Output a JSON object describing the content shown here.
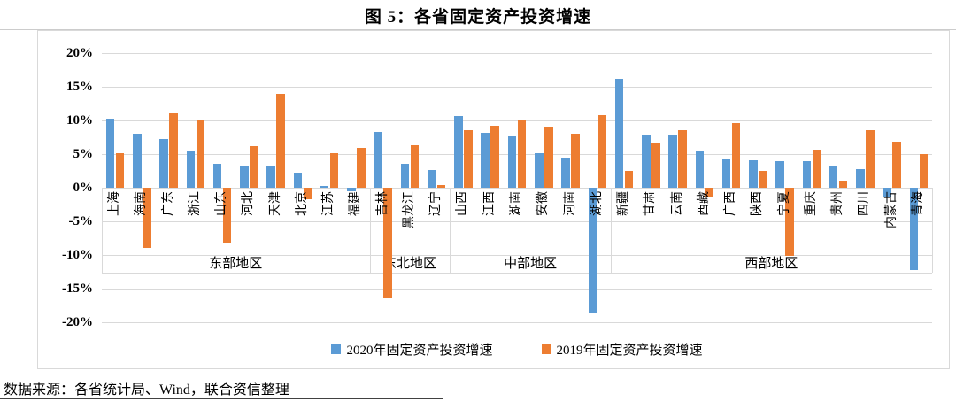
{
  "document": {
    "title": "图 5：各省固定资产投资增速",
    "source_note": "数据来源：各省统计局、Wind，联合资信整理"
  },
  "chart_data": {
    "type": "bar",
    "title": "图 5：各省固定资产投资增速",
    "categories": [
      "上海",
      "海南",
      "广东",
      "浙江",
      "山东",
      "河北",
      "天津",
      "北京",
      "江苏",
      "福建",
      "吉林",
      "黑龙江",
      "辽宁",
      "山西",
      "江西",
      "湖南",
      "安徽",
      "河南",
      "湖北",
      "新疆",
      "甘肃",
      "云南",
      "西藏",
      "广西",
      "陕西",
      "宁夏",
      "重庆",
      "贵州",
      "四川",
      "内蒙古",
      "青海"
    ],
    "series": [
      {
        "name": "2020年固定资产投资增速",
        "color": "#5B9BD5",
        "values": [
          10.3,
          8.0,
          7.2,
          5.4,
          3.6,
          3.2,
          3.1,
          2.2,
          0.3,
          -0.5,
          8.3,
          3.6,
          2.6,
          10.6,
          8.2,
          7.6,
          5.1,
          4.3,
          -18.5,
          16.2,
          7.8,
          7.7,
          5.4,
          4.2,
          4.1,
          4.0,
          3.9,
          3.3,
          2.8,
          -1.3,
          -12.2
        ]
      },
      {
        "name": "2019年固定资产投资增速",
        "color": "#ED7D31",
        "values": [
          5.1,
          -9.0,
          11.1,
          10.1,
          -8.1,
          6.2,
          13.9,
          -1.7,
          5.1,
          5.9,
          -16.3,
          6.3,
          0.4,
          8.5,
          9.2,
          10.0,
          9.1,
          8.0,
          10.8,
          2.5,
          6.6,
          8.5,
          -1.3,
          9.6,
          2.5,
          -10.1,
          5.7,
          1.1,
          8.6,
          6.8,
          5.0
        ]
      }
    ],
    "region_groups": [
      {
        "label": "东部地区",
        "count": 10
      },
      {
        "label": "东北地区",
        "count": 3
      },
      {
        "label": "中部地区",
        "count": 6
      },
      {
        "label": "西部地区",
        "count": 12
      }
    ],
    "y_axis": {
      "unit": "%",
      "min": -20,
      "max": 20,
      "step": 5,
      "tick_labels": [
        "20%",
        "15%",
        "10%",
        "5%",
        "0%",
        "-5%",
        "-10%",
        "-15%",
        "-20%"
      ]
    },
    "grid": true,
    "legend_position": "bottom",
    "colors": {
      "grid": "#D9D9D9",
      "border": "#D9D9D9",
      "blue": "#5B9BD5",
      "orange": "#ED7D31"
    }
  }
}
